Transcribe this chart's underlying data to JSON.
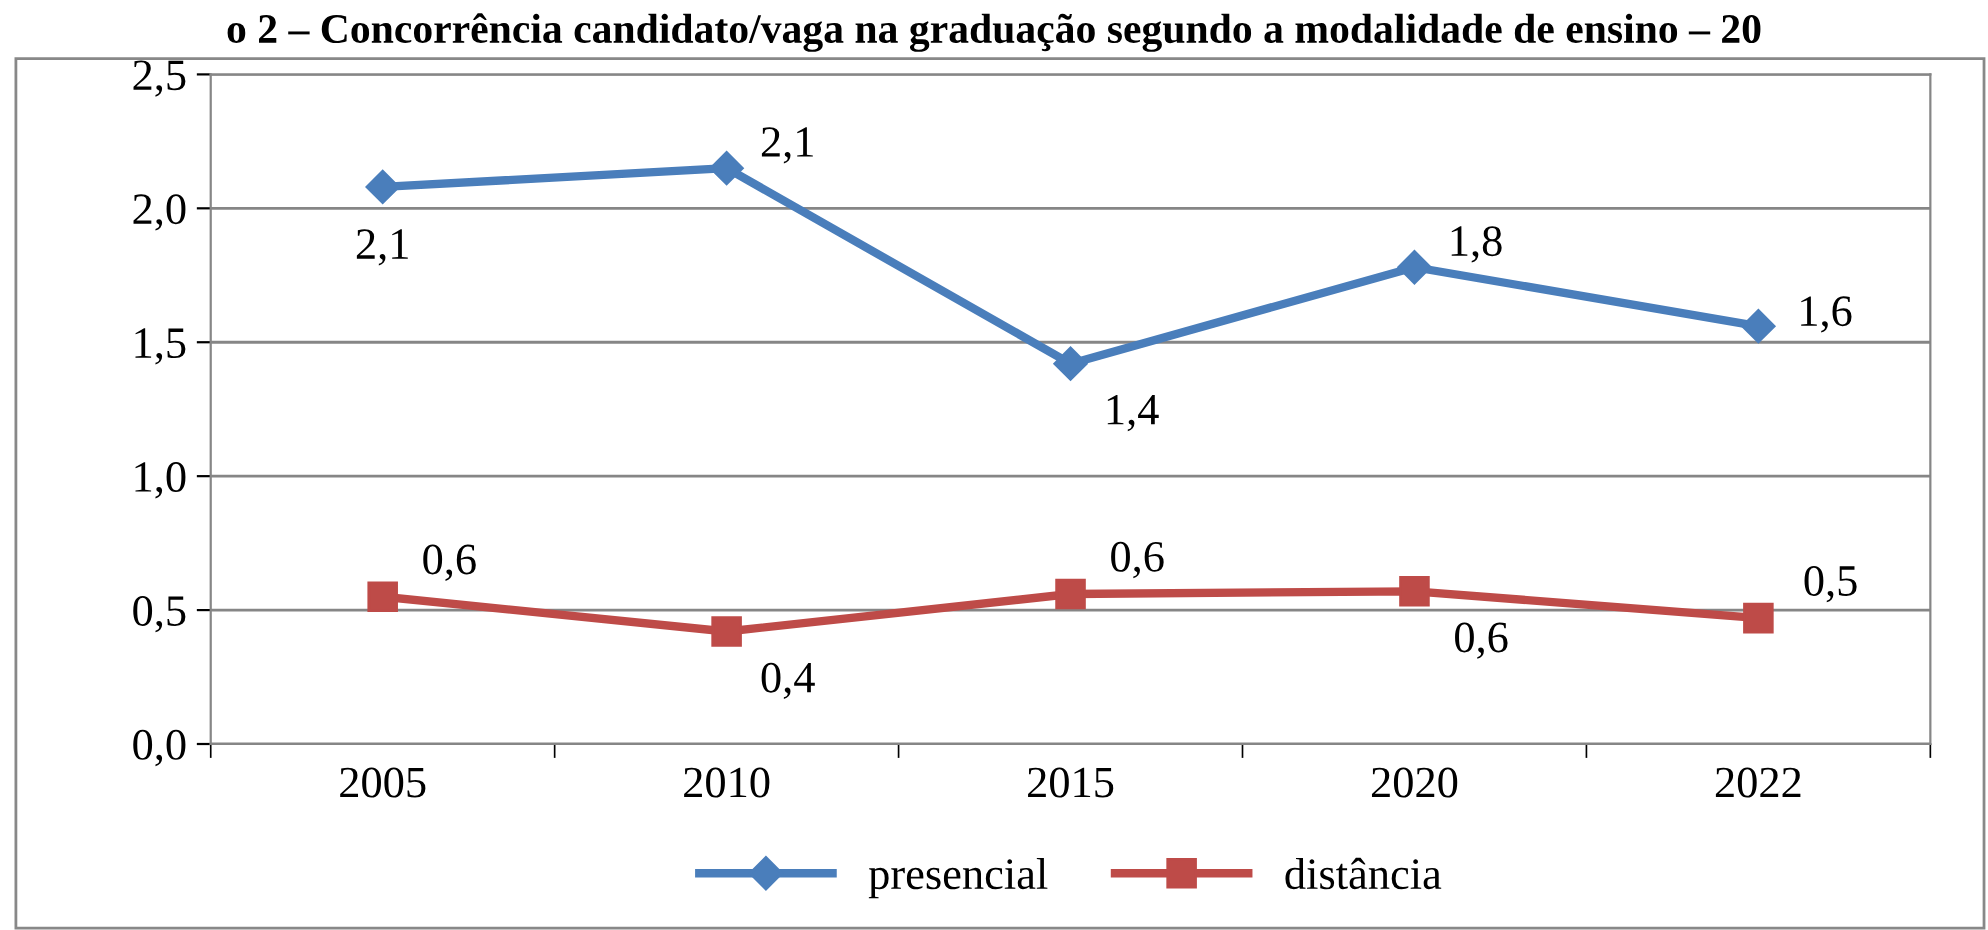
{
  "chart_data": {
    "type": "line",
    "title": "o 2 – Concorrência candidato/vaga na graduação segundo a modalidade de ensino – 20",
    "categories": [
      "2005",
      "2010",
      "2015",
      "2020",
      "2022"
    ],
    "series": [
      {
        "name": "presencial",
        "color": "#4a7ebb",
        "marker": "diamond",
        "values": [
          2.08,
          2.15,
          1.42,
          1.78,
          1.56
        ],
        "value_labels": [
          "2,1",
          "2,1",
          "1,4",
          "1,8",
          "1,6"
        ]
      },
      {
        "name": "distância",
        "color": "#be4b48",
        "marker": "square",
        "values": [
          0.55,
          0.42,
          0.56,
          0.57,
          0.47
        ],
        "value_labels": [
          "0,6",
          "0,4",
          "0,6",
          "0,6",
          "0,5"
        ]
      }
    ],
    "ylim": [
      0,
      2.5
    ],
    "yticks": [
      {
        "value": 0,
        "label": "0,0"
      },
      {
        "value": 0.5,
        "label": "0,5"
      },
      {
        "value": 1,
        "label": "1,0"
      },
      {
        "value": 1.5,
        "label": "1,5"
      },
      {
        "value": 2,
        "label": "2,0"
      },
      {
        "value": 2.5,
        "label": "2,5"
      }
    ],
    "grid": "y",
    "legend": "bottom",
    "line_style": "solid"
  }
}
